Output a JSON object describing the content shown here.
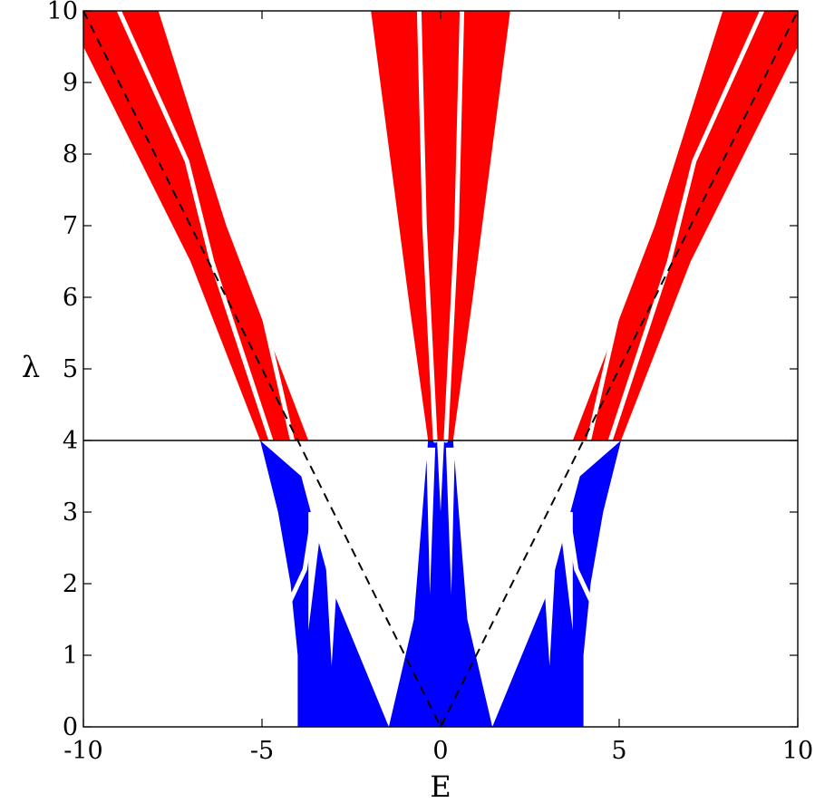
{
  "chart_data": {
    "type": "area",
    "title": "",
    "xlabel": "E",
    "ylabel": "λ",
    "xlim": [
      -10,
      10
    ],
    "ylim": [
      0,
      10
    ],
    "xticks": [
      -10,
      -5,
      0,
      5,
      10
    ],
    "yticks": [
      0,
      1,
      2,
      3,
      4,
      5,
      6,
      7,
      8,
      9,
      10
    ],
    "xtick_labels": [
      "-10",
      "-5",
      "0",
      "5",
      "10"
    ],
    "ytick_labels": [
      "0",
      "1",
      "2",
      "3",
      "4",
      "5",
      "6",
      "7",
      "8",
      "9",
      "10"
    ],
    "grid": false,
    "legend": "none",
    "colors": {
      "lower_region": "#0000ff",
      "upper_region": "#ff0000",
      "lines": "#000000"
    },
    "reference_lines": [
      {
        "kind": "horizontal",
        "y": 4,
        "style": "solid"
      },
      {
        "kind": "v-shape",
        "points": [
          [
            -10,
            10
          ],
          [
            0,
            0
          ],
          [
            10,
            10
          ]
        ],
        "style": "dashed"
      }
    ],
    "regions": [
      {
        "color": "blue",
        "polygon": [
          [
            -4.0,
            0
          ],
          [
            -1.45,
            0
          ],
          [
            -3.1,
            2.0
          ],
          [
            -3.9,
            3.5
          ],
          [
            -5.05,
            4.0
          ],
          [
            -4.55,
            3.0
          ],
          [
            -4.2,
            2.0
          ],
          [
            -4.0,
            1.0
          ]
        ]
      },
      {
        "color": "blue",
        "polygon": [
          [
            1.45,
            0
          ],
          [
            4.0,
            0
          ],
          [
            4.0,
            1.0
          ],
          [
            4.2,
            2.0
          ],
          [
            4.55,
            3.0
          ],
          [
            5.05,
            4.0
          ],
          [
            3.9,
            3.5
          ],
          [
            3.1,
            2.0
          ]
        ]
      },
      {
        "color": "blue",
        "polygon": [
          [
            -1.45,
            0
          ],
          [
            1.45,
            0
          ],
          [
            0.75,
            1.5
          ],
          [
            0.35,
            4.0
          ],
          [
            0.1,
            4.0
          ],
          [
            0,
            3.0
          ],
          [
            -0.1,
            4.0
          ],
          [
            -0.35,
            4.0
          ],
          [
            -0.75,
            1.5
          ]
        ]
      },
      {
        "color": "red",
        "polygon": [
          [
            -5.05,
            4.0
          ],
          [
            -3.7,
            4.0
          ],
          [
            -6.0,
            7.0
          ],
          [
            -7.9,
            10.0
          ],
          [
            -10.0,
            10.0
          ],
          [
            -10.0,
            9.5
          ],
          [
            -7.0,
            6.5
          ]
        ]
      },
      {
        "color": "red",
        "polygon": [
          [
            3.7,
            4.0
          ],
          [
            5.05,
            4.0
          ],
          [
            7.0,
            6.5
          ],
          [
            10.0,
            9.5
          ],
          [
            10.0,
            10.0
          ],
          [
            7.9,
            10.0
          ],
          [
            6.0,
            7.0
          ]
        ]
      },
      {
        "color": "red",
        "polygon": [
          [
            -0.35,
            4.0
          ],
          [
            0.35,
            4.0
          ],
          [
            0.9,
            6.0
          ],
          [
            1.95,
            10.0
          ],
          [
            -1.95,
            10.0
          ],
          [
            -0.9,
            6.0
          ]
        ]
      }
    ],
    "gaps": [
      {
        "polyline": [
          [
            -4.75,
            4.0
          ],
          [
            -6.4,
            6.5
          ],
          [
            -7.1,
            7.9
          ],
          [
            -9.0,
            10.0
          ]
        ]
      },
      {
        "polyline": [
          [
            -4.15,
            4.0
          ],
          [
            -5.3,
            6.5
          ],
          [
            -6.35,
            8.2
          ],
          [
            -7.7,
            10.0
          ]
        ]
      },
      {
        "polyline": [
          [
            4.75,
            4.0
          ],
          [
            6.4,
            6.5
          ],
          [
            7.1,
            7.9
          ],
          [
            9.0,
            10.0
          ]
        ]
      },
      {
        "polyline": [
          [
            4.15,
            4.0
          ],
          [
            5.3,
            6.5
          ],
          [
            6.35,
            8.2
          ],
          [
            7.7,
            10.0
          ]
        ]
      },
      {
        "polyline": [
          [
            -0.15,
            4.0
          ],
          [
            -0.45,
            7.0
          ],
          [
            -0.6,
            10.0
          ]
        ]
      },
      {
        "polyline": [
          [
            0.15,
            4.0
          ],
          [
            0.45,
            7.0
          ],
          [
            0.6,
            10.0
          ]
        ]
      },
      {
        "polyline": [
          [
            -4.55,
            1.4
          ],
          [
            -3.8,
            2.2
          ],
          [
            -3.4,
            3.5
          ],
          [
            -3.0,
            3.9
          ]
        ]
      },
      {
        "polyline": [
          [
            4.55,
            1.4
          ],
          [
            3.8,
            2.2
          ],
          [
            3.4,
            3.5
          ],
          [
            3.0,
            3.9
          ]
        ]
      }
    ],
    "notches": [
      {
        "polygon": [
          [
            -3.05,
            0.85
          ],
          [
            -2.75,
            3.2
          ],
          [
            -3.35,
            3.5
          ]
        ]
      },
      {
        "polygon": [
          [
            3.05,
            0.85
          ],
          [
            2.75,
            3.2
          ],
          [
            3.35,
            3.5
          ]
        ]
      },
      {
        "polygon": [
          [
            -3.7,
            1.35
          ],
          [
            -3.3,
            3.0
          ],
          [
            -3.7,
            3.0
          ]
        ]
      },
      {
        "polygon": [
          [
            3.7,
            1.35
          ],
          [
            3.3,
            3.0
          ],
          [
            3.7,
            3.0
          ]
        ]
      },
      {
        "polygon": [
          [
            -0.3,
            1.85
          ],
          [
            -0.15,
            3.9
          ],
          [
            -0.4,
            3.9
          ]
        ]
      },
      {
        "polygon": [
          [
            0.3,
            1.85
          ],
          [
            0.15,
            3.9
          ],
          [
            0.4,
            3.9
          ]
        ]
      }
    ]
  }
}
